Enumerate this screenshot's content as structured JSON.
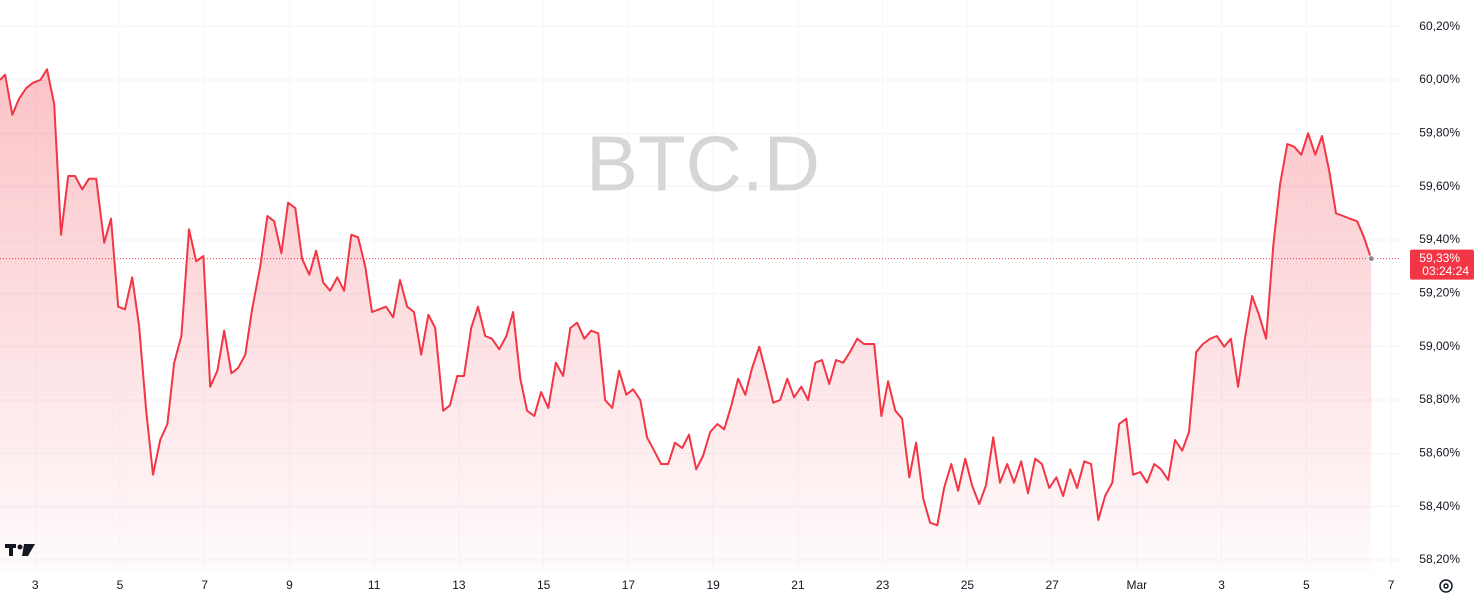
{
  "chart_data": {
    "type": "area",
    "title": "BTC.D",
    "color": "#f23645",
    "x": [
      2.17,
      2.29,
      2.46,
      2.62,
      2.79,
      2.95,
      3.12,
      3.28,
      3.45,
      3.61,
      3.78,
      3.94,
      4.11,
      4.27,
      4.44,
      4.63,
      4.79,
      4.96,
      5.12,
      5.29,
      5.45,
      5.62,
      5.78,
      5.95,
      6.12,
      6.28,
      6.45,
      6.63,
      6.8,
      6.97,
      7.13,
      7.3,
      7.46,
      7.63,
      7.79,
      7.96,
      8.12,
      8.31,
      8.48,
      8.64,
      8.81,
      8.97,
      9.14,
      9.3,
      9.47,
      9.63,
      9.8,
      9.96,
      10.13,
      10.29,
      10.46,
      10.62,
      10.79,
      10.95,
      11.12,
      11.28,
      11.45,
      11.61,
      11.78,
      11.94,
      12.11,
      12.28,
      12.44,
      12.63,
      12.79,
      12.96,
      13.12,
      13.29,
      13.45,
      13.62,
      13.78,
      13.95,
      14.12,
      14.28,
      14.45,
      14.61,
      14.78,
      14.94,
      15.11,
      15.29,
      15.46,
      15.63,
      15.79,
      15.96,
      16.12,
      16.29,
      16.45,
      16.62,
      16.78,
      16.95,
      17.11,
      17.28,
      17.44,
      17.61,
      17.77,
      17.94,
      18.1,
      18.27,
      18.43,
      18.6,
      18.76,
      18.93,
      19.1,
      19.26,
      19.43,
      19.59,
      19.76,
      19.92,
      20.09,
      20.25,
      20.42,
      20.58,
      20.75,
      20.91,
      21.08,
      21.24,
      21.41,
      21.57,
      21.74,
      21.9,
      22.07,
      22.23,
      22.4,
      22.56,
      22.8,
      22.97,
      23.13,
      23.3,
      23.46,
      23.63,
      23.79,
      23.96,
      24.12,
      24.29,
      24.45,
      24.62,
      24.78,
      24.95,
      25.11,
      25.28,
      25.44,
      25.61,
      25.77,
      25.94,
      26.1,
      26.27,
      26.43,
      26.6,
      26.76,
      26.93,
      27.1,
      27.26,
      27.43,
      27.59,
      27.76,
      27.92,
      28.09,
      28.25,
      28.42,
      28.58,
      28.75,
      28.91,
      29.08,
      29.24,
      29.41,
      29.57,
      29.74,
      29.9,
      30.07,
      30.23,
      30.4,
      30.56,
      30.73,
      30.89,
      31.06,
      31.22,
      31.39,
      31.55,
      31.72,
      31.88,
      32.05,
      32.22,
      32.38,
      32.55,
      32.71,
      32.88,
      33.04,
      33.21,
      33.37,
      33.54,
      33.7,
      33.87,
      34.03,
      34.2,
      34.36,
      34.53
    ],
    "values": [
      60.0,
      60.02,
      59.87,
      59.93,
      59.97,
      59.99,
      60.0,
      60.04,
      59.91,
      59.42,
      59.64,
      59.64,
      59.59,
      59.63,
      59.63,
      59.39,
      59.48,
      59.15,
      59.14,
      59.26,
      59.08,
      58.76,
      58.52,
      58.65,
      58.71,
      58.94,
      59.04,
      59.44,
      59.32,
      59.34,
      58.85,
      58.91,
      59.06,
      58.9,
      58.92,
      58.97,
      59.14,
      59.3,
      59.49,
      59.47,
      59.35,
      59.54,
      59.52,
      59.33,
      59.27,
      59.36,
      59.24,
      59.21,
      59.26,
      59.21,
      59.42,
      59.41,
      59.3,
      59.13,
      59.14,
      59.15,
      59.11,
      59.25,
      59.15,
      59.13,
      58.97,
      59.12,
      59.07,
      58.76,
      58.78,
      58.89,
      58.89,
      59.07,
      59.15,
      59.04,
      59.03,
      58.99,
      59.04,
      59.13,
      58.88,
      58.76,
      58.74,
      58.83,
      58.77,
      58.94,
      58.89,
      59.07,
      59.09,
      59.03,
      59.06,
      59.05,
      58.8,
      58.77,
      58.91,
      58.82,
      58.84,
      58.8,
      58.66,
      58.61,
      58.56,
      58.56,
      58.64,
      58.62,
      58.67,
      58.54,
      58.59,
      58.68,
      58.71,
      58.69,
      58.78,
      58.88,
      58.82,
      58.92,
      59.0,
      58.9,
      58.79,
      58.8,
      58.88,
      58.81,
      58.85,
      58.8,
      58.94,
      58.95,
      58.86,
      58.95,
      58.94,
      58.98,
      59.03,
      59.01,
      59.01,
      58.74,
      58.87,
      58.76,
      58.73,
      58.51,
      58.64,
      58.43,
      58.34,
      58.33,
      58.47,
      58.56,
      58.46,
      58.58,
      58.48,
      58.41,
      58.48,
      58.66,
      58.49,
      58.56,
      58.49,
      58.57,
      58.45,
      58.58,
      58.56,
      58.47,
      58.51,
      58.44,
      58.54,
      58.47,
      58.57,
      58.56,
      58.35,
      58.44,
      58.49,
      58.71,
      58.73,
      58.52,
      58.53,
      58.49,
      58.56,
      58.54,
      58.5,
      58.65,
      58.61,
      58.68,
      58.98,
      59.01,
      59.03,
      59.04,
      59.0,
      59.03,
      58.85,
      59.03,
      59.19,
      59.12,
      59.03,
      59.38,
      59.61,
      59.76,
      59.75,
      59.72,
      59.8,
      59.72,
      59.79,
      59.66,
      59.5,
      59.49,
      59.48,
      59.47,
      59.41,
      59.33
    ],
    "xlim": [
      2.17,
      35.21
    ],
    "xticks": [
      3,
      5,
      7,
      9,
      11,
      13,
      15,
      17,
      19,
      21,
      23,
      25,
      27,
      {
        "value": 29,
        "label": "Mar"
      },
      {
        "value": 31,
        "label": "3"
      },
      {
        "value": 33,
        "label": "5"
      },
      {
        "value": 35,
        "label": "7"
      }
    ],
    "ylim": [
      58.155,
      60.3
    ],
    "yticks": [
      {
        "value": 58.2,
        "label": "58,20%"
      },
      {
        "value": 58.4,
        "label": "58,40%"
      },
      {
        "value": 58.6,
        "label": "58,60%"
      },
      {
        "value": 58.8,
        "label": "58,80%"
      },
      {
        "value": 59.0,
        "label": "59,00%"
      },
      {
        "value": 59.2,
        "label": "59,20%"
      },
      {
        "value": 59.4,
        "label": "59,40%"
      },
      {
        "value": 59.6,
        "label": "59,60%"
      },
      {
        "value": 59.8,
        "label": "59,80%"
      },
      {
        "value": 60.0,
        "label": "60,00%"
      },
      {
        "value": 60.2,
        "label": "60,20%"
      }
    ],
    "grid": true,
    "last_price_label": "59,33%",
    "countdown": "03:24:24"
  }
}
